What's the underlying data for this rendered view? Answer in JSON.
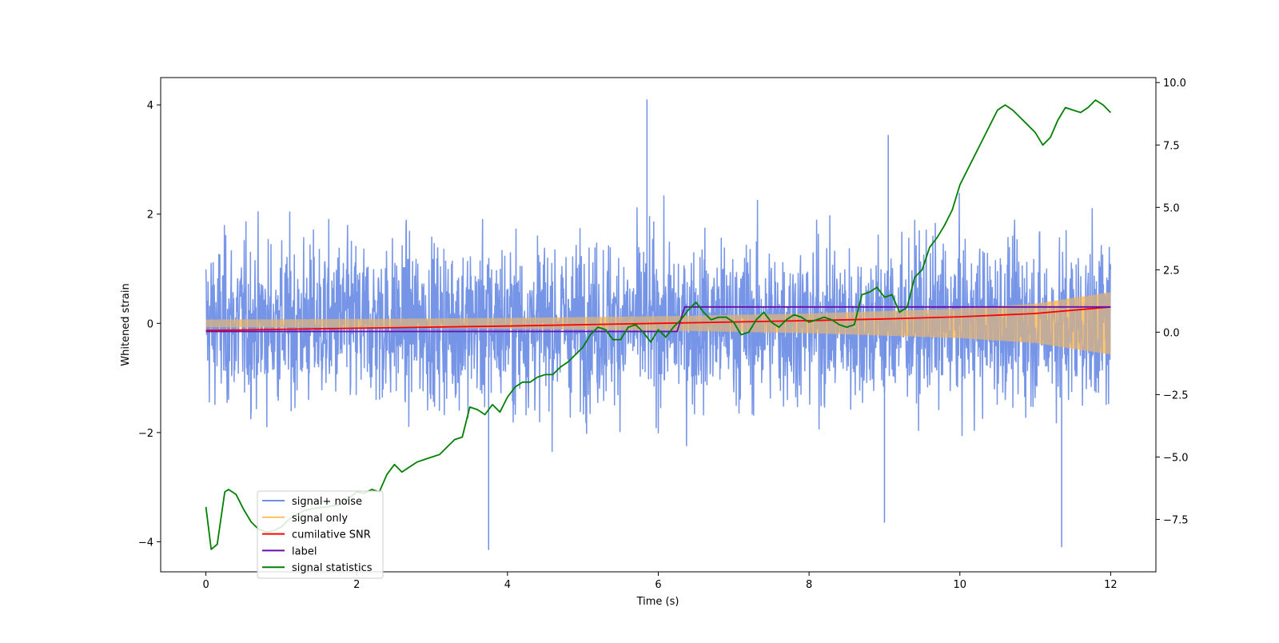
{
  "chart_data": {
    "type": "line",
    "title": "",
    "xlabel": "Time (s)",
    "ylabel": "Whitened strain",
    "y2label": "",
    "xlim": [
      -0.6,
      12.6
    ],
    "ylim": [
      -4.55,
      4.5
    ],
    "y2lim": [
      -9.6,
      10.2
    ],
    "xticks": [
      "0",
      "2",
      "4",
      "6",
      "8",
      "10",
      "12"
    ],
    "yticks": [
      "−4",
      "−2",
      "0",
      "2",
      "4"
    ],
    "y2ticks": [
      "−7.5",
      "−5.0",
      "−2.5",
      "0.0",
      "2.5",
      "5.0",
      "7.5",
      "10.0"
    ],
    "grid": false,
    "legend_position": "lower-left",
    "series": [
      {
        "name": "signal+ noise",
        "color": "#6f8fe6",
        "kind": "noise",
        "axis": "left",
        "description_range": [
          -4.15,
          4.1
        ],
        "notable_spikes": [
          {
            "x": 5.85,
            "y": 4.1
          },
          {
            "x": 3.75,
            "y": -4.15
          },
          {
            "x": 11.35,
            "y": -4.1
          },
          {
            "x": 9.05,
            "y": 3.45
          },
          {
            "x": 9.0,
            "y": -3.65
          }
        ]
      },
      {
        "name": "signal only",
        "color": "#ffbf60",
        "kind": "envelope",
        "axis": "left",
        "x": [
          0,
          2,
          4,
          6,
          8,
          10,
          11,
          12
        ],
        "amplitude": [
          0.07,
          0.08,
          0.1,
          0.13,
          0.18,
          0.27,
          0.36,
          0.57
        ]
      },
      {
        "name": "cumilative SNR",
        "color": "#ff0000",
        "axis": "left",
        "x": [
          0,
          2,
          4,
          6,
          8,
          9,
          10,
          11,
          12
        ],
        "y": [
          -0.13,
          -0.09,
          -0.05,
          0.0,
          0.05,
          0.08,
          0.12,
          0.18,
          0.3
        ]
      },
      {
        "name": "label",
        "color": "#6a0dad",
        "axis": "left",
        "step": true,
        "x": [
          0,
          6.25,
          6.35,
          12
        ],
        "y": [
          -0.15,
          -0.15,
          0.3,
          0.3
        ]
      },
      {
        "name": "signal statistics",
        "color": "#008000",
        "axis": "right",
        "x": [
          0,
          0.07,
          0.15,
          0.25,
          0.3,
          0.4,
          0.5,
          0.6,
          0.7,
          0.8,
          0.9,
          1.0,
          1.1,
          1.2,
          1.3,
          1.45,
          1.6,
          1.8,
          2.0,
          2.1,
          2.2,
          2.3,
          2.4,
          2.5,
          2.6,
          2.7,
          2.8,
          2.9,
          3.0,
          3.1,
          3.2,
          3.3,
          3.4,
          3.5,
          3.6,
          3.7,
          3.8,
          3.9,
          4.0,
          4.1,
          4.2,
          4.3,
          4.4,
          4.5,
          4.6,
          4.7,
          4.8,
          4.9,
          5.0,
          5.1,
          5.2,
          5.3,
          5.4,
          5.5,
          5.6,
          5.7,
          5.8,
          5.9,
          6.0,
          6.1,
          6.2,
          6.3,
          6.4,
          6.5,
          6.6,
          6.7,
          6.8,
          6.9,
          7.0,
          7.1,
          7.2,
          7.3,
          7.4,
          7.5,
          7.6,
          7.7,
          7.8,
          7.9,
          8.0,
          8.1,
          8.2,
          8.3,
          8.4,
          8.5,
          8.6,
          8.7,
          8.8,
          8.9,
          9.0,
          9.1,
          9.2,
          9.3,
          9.4,
          9.5,
          9.6,
          9.7,
          9.8,
          9.9,
          10.0,
          10.1,
          10.2,
          10.3,
          10.4,
          10.5,
          10.6,
          10.7,
          10.8,
          10.9,
          11.0,
          11.1,
          11.2,
          11.3,
          11.4,
          11.5,
          11.6,
          11.7,
          11.8,
          11.9,
          12.0
        ],
        "y": [
          -7.0,
          -8.7,
          -8.5,
          -6.4,
          -6.3,
          -6.5,
          -7.1,
          -7.6,
          -7.9,
          -8.0,
          -7.95,
          -7.8,
          -7.5,
          -7.3,
          -7.15,
          -7.05,
          -7.0,
          -6.9,
          -6.4,
          -6.45,
          -6.3,
          -6.4,
          -5.7,
          -5.3,
          -5.6,
          -5.4,
          -5.2,
          -5.1,
          -5.0,
          -4.9,
          -4.6,
          -4.3,
          -4.2,
          -3.0,
          -3.1,
          -3.3,
          -2.9,
          -3.2,
          -2.6,
          -2.2,
          -2.0,
          -2.0,
          -1.8,
          -1.7,
          -1.7,
          -1.4,
          -1.2,
          -0.9,
          -0.6,
          -0.1,
          0.2,
          0.1,
          -0.3,
          -0.3,
          0.2,
          0.3,
          0.0,
          -0.4,
          0.1,
          -0.2,
          0.2,
          0.5,
          0.9,
          1.2,
          0.8,
          0.5,
          0.6,
          0.6,
          0.4,
          -0.1,
          0.0,
          0.5,
          0.8,
          0.4,
          0.2,
          0.5,
          0.7,
          0.6,
          0.4,
          0.5,
          0.6,
          0.5,
          0.3,
          0.2,
          0.3,
          1.5,
          1.6,
          1.8,
          1.4,
          1.5,
          0.8,
          1.0,
          2.2,
          2.5,
          3.4,
          3.8,
          4.3,
          4.9,
          5.9,
          6.5,
          7.1,
          7.7,
          8.3,
          8.9,
          9.1,
          8.9,
          8.6,
          8.3,
          8.0,
          7.5,
          7.8,
          8.5,
          9.0,
          8.9,
          8.8,
          9.0,
          9.3,
          9.1,
          8.8
        ]
      }
    ]
  }
}
